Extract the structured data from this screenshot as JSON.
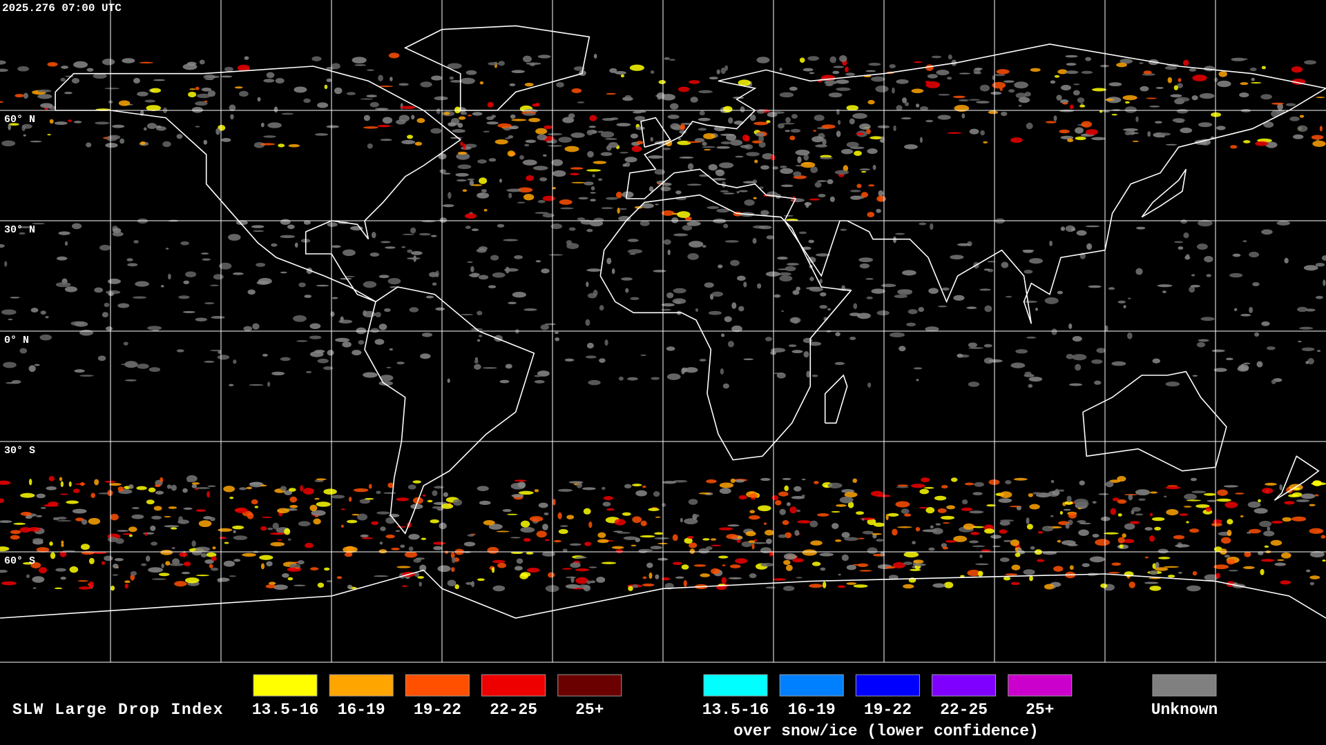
{
  "header": {
    "timestamp": "2025.276 07:00 UTC"
  },
  "map": {
    "lat_labels": [
      "60° N",
      "30° N",
      "0° N",
      "30° S",
      "60° S"
    ]
  },
  "legend": {
    "title": "SLW Large Drop Index",
    "groups": [
      {
        "items": [
          {
            "label": "13.5-16",
            "color": "#ffff00"
          },
          {
            "label": "16-19",
            "color": "#ffa500"
          },
          {
            "label": "19-22",
            "color": "#ff5000"
          },
          {
            "label": "22-25",
            "color": "#ee0000"
          },
          {
            "label": "25+",
            "color": "#6a0000"
          }
        ]
      },
      {
        "items": [
          {
            "label": "13.5-16",
            "color": "#00ffff"
          },
          {
            "label": "16-19",
            "color": "#0080ff"
          },
          {
            "label": "19-22",
            "color": "#0000ff"
          },
          {
            "label": "22-25",
            "color": "#7f00ff"
          },
          {
            "label": "25+",
            "color": "#cc00cc"
          }
        ]
      }
    ],
    "snow_note": "over snow/ice (lower confidence)",
    "unknown": {
      "label": "Unknown",
      "color": "#808080"
    }
  }
}
